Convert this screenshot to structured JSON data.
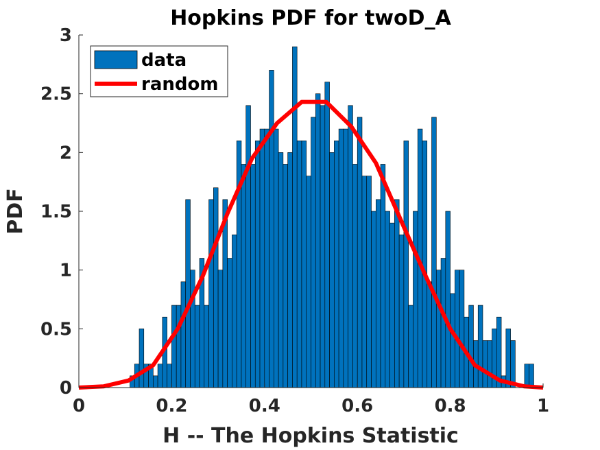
{
  "chart_data": {
    "type": "bar",
    "title": "Hopkins PDF for twoD_A",
    "xlabel": "H -- The Hopkins Statistic",
    "ylabel": "PDF",
    "xlim": [
      0,
      1
    ],
    "ylim": [
      0,
      3
    ],
    "xticks": [
      "0",
      "0.2",
      "0.4",
      "0.6",
      "0.8",
      "1"
    ],
    "yticks": [
      "0",
      "0.5",
      "1",
      "1.5",
      "2",
      "2.5",
      "3"
    ],
    "legend_position": "top-left",
    "grid": false,
    "colors": {
      "data": "#0072BD",
      "random": "#FF0000",
      "axis": "#262626"
    },
    "series": [
      {
        "name": "data",
        "kind": "histogram",
        "bin_start": 0.11,
        "bin_width": 0.01,
        "values": [
          0.1,
          0.2,
          0.5,
          0.2,
          0.2,
          0.1,
          0.2,
          0.6,
          0.2,
          0.7,
          0.7,
          0.9,
          1.6,
          1.0,
          0.7,
          1.1,
          0.7,
          1.6,
          1.7,
          1.0,
          1.6,
          1.1,
          1.3,
          2.1,
          1.9,
          2.4,
          1.9,
          2.1,
          2.2,
          2.2,
          2.7,
          2.2,
          2.0,
          1.9,
          2.0,
          2.9,
          2.1,
          2.1,
          1.8,
          2.3,
          2.5,
          2.4,
          2.6,
          2.0,
          2.1,
          2.2,
          2.2,
          2.4,
          1.9,
          2.3,
          1.8,
          1.8,
          1.5,
          1.6,
          1.9,
          1.5,
          1.4,
          1.6,
          1.3,
          2.1,
          0.7,
          1.5,
          2.2,
          2.1,
          0.9,
          2.3,
          1.0,
          1.1,
          1.5,
          0.8,
          1.0,
          1.0,
          0.6,
          0.7,
          0.4,
          0.7,
          0.4,
          0.4,
          0.5,
          0.6,
          0.1,
          0.5,
          0.4,
          0.0,
          0.0,
          0.2,
          0.2
        ]
      },
      {
        "name": "random",
        "kind": "line",
        "x": [
          0.0,
          0.053,
          0.107,
          0.16,
          0.213,
          0.267,
          0.32,
          0.373,
          0.427,
          0.48,
          0.533,
          0.587,
          0.64,
          0.693,
          0.747,
          0.8,
          0.853,
          0.907,
          0.96,
          1.0
        ],
        "y": [
          0.0,
          0.01,
          0.06,
          0.19,
          0.5,
          0.95,
          1.48,
          1.95,
          2.25,
          2.43,
          2.43,
          2.22,
          1.91,
          1.43,
          0.95,
          0.5,
          0.19,
          0.06,
          0.01,
          0.0
        ]
      }
    ]
  }
}
